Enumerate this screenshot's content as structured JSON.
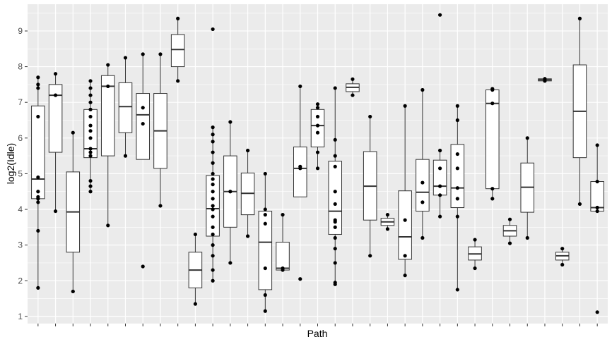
{
  "chart_data": {
    "type": "boxplot",
    "xlabel": "Path",
    "ylabel": "log2(Idle)",
    "ylim": [
      0.8,
      9.75
    ],
    "y_ticks": [
      1,
      2,
      3,
      4,
      5,
      6,
      7,
      8,
      9
    ],
    "x_tick_labels": "none",
    "grid": "on",
    "colors": {
      "panel": "#ebebeb",
      "grid": "#ffffff",
      "box_fill": "#ffffff",
      "box_line": "#333333",
      "point": "#000000"
    },
    "boxes": [
      {
        "whisker_low": 1.8,
        "q1": 4.3,
        "median": 4.85,
        "q3": 6.9,
        "whisker_high": 7.7,
        "points": [
          1.8,
          3.4,
          4.2,
          4.3,
          4.35,
          4.5,
          4.9,
          6.6,
          7.4,
          7.5,
          7.7
        ]
      },
      {
        "whisker_low": 3.95,
        "q1": 5.6,
        "median": 7.2,
        "q3": 7.5,
        "whisker_high": 7.8,
        "points": [
          3.95,
          7.2,
          7.8
        ]
      },
      {
        "whisker_low": 1.7,
        "q1": 2.8,
        "median": 3.93,
        "q3": 5.05,
        "whisker_high": 6.15,
        "points": [
          1.7,
          6.15
        ]
      },
      {
        "whisker_low": 4.5,
        "q1": 5.45,
        "median": 5.7,
        "q3": 6.8,
        "whisker_high": 7.6,
        "points": [
          4.5,
          4.65,
          4.8,
          5.5,
          5.6,
          5.7,
          6.0,
          6.2,
          6.35,
          6.6,
          6.8,
          7.0,
          7.2,
          7.4,
          7.6
        ]
      },
      {
        "whisker_low": 3.55,
        "q1": 5.5,
        "median": 7.45,
        "q3": 7.75,
        "whisker_high": 8.05,
        "points": [
          3.55,
          7.45,
          8.05
        ]
      },
      {
        "whisker_low": 5.5,
        "q1": 6.15,
        "median": 6.88,
        "q3": 7.55,
        "whisker_high": 8.25,
        "points": [
          5.5,
          8.25
        ]
      },
      {
        "whisker_low": 5.4,
        "q1": 5.4,
        "median": 6.65,
        "q3": 7.25,
        "whisker_high": 8.35,
        "points": [
          2.4,
          6.4,
          6.85,
          8.35
        ]
      },
      {
        "whisker_low": 4.1,
        "q1": 5.15,
        "median": 6.2,
        "q3": 7.25,
        "whisker_high": 8.35,
        "points": [
          4.1,
          8.35
        ]
      },
      {
        "whisker_low": 7.6,
        "q1": 8.0,
        "median": 8.48,
        "q3": 8.9,
        "whisker_high": 9.35,
        "points": [
          7.6,
          9.35
        ]
      },
      {
        "whisker_low": 1.35,
        "q1": 1.8,
        "median": 2.3,
        "q3": 2.8,
        "whisker_high": 3.3,
        "points": [
          1.35,
          3.3
        ]
      },
      {
        "whisker_low": 2.0,
        "q1": 3.25,
        "median": 4.02,
        "q3": 4.95,
        "whisker_high": 6.3,
        "points": [
          2.0,
          2.3,
          2.7,
          3.0,
          3.3,
          3.5,
          3.8,
          4.0,
          4.1,
          4.3,
          4.5,
          4.7,
          4.85,
          5.0,
          5.3,
          5.6,
          5.9,
          6.1,
          6.3,
          9.05
        ]
      },
      {
        "whisker_low": 2.5,
        "q1": 3.5,
        "median": 4.5,
        "q3": 5.5,
        "whisker_high": 6.45,
        "points": [
          2.5,
          4.5,
          6.45
        ]
      },
      {
        "whisker_low": 3.25,
        "q1": 3.85,
        "median": 4.45,
        "q3": 5.02,
        "whisker_high": 5.65,
        "points": [
          3.25,
          5.65
        ]
      },
      {
        "whisker_low": 1.15,
        "q1": 1.75,
        "median": 3.08,
        "q3": 3.95,
        "whisker_high": 5.0,
        "points": [
          1.15,
          1.6,
          2.35,
          3.6,
          3.85,
          4.0,
          5.0
        ]
      },
      {
        "whisker_low": 2.3,
        "q1": 2.3,
        "median": 2.35,
        "q3": 3.08,
        "whisker_high": 3.85,
        "points": [
          2.3,
          2.35,
          3.85
        ]
      },
      {
        "whisker_low": 4.35,
        "q1": 4.35,
        "median": 5.15,
        "q3": 5.75,
        "whisker_high": 7.45,
        "points": [
          2.05,
          5.15,
          5.2,
          7.45
        ]
      },
      {
        "whisker_low": 5.15,
        "q1": 5.75,
        "median": 6.35,
        "q3": 6.8,
        "whisker_high": 6.95,
        "points": [
          5.15,
          5.6,
          6.15,
          6.35,
          6.6,
          6.85,
          6.95
        ]
      },
      {
        "whisker_low": 1.9,
        "q1": 3.3,
        "median": 3.95,
        "q3": 5.35,
        "whisker_high": 7.4,
        "points": [
          1.9,
          1.95,
          2.5,
          2.9,
          3.2,
          3.5,
          3.65,
          3.7,
          4.15,
          4.5,
          5.2,
          5.5,
          5.95,
          7.4
        ]
      },
      {
        "whisker_low": 7.2,
        "q1": 7.3,
        "median": 7.42,
        "q3": 7.52,
        "whisker_high": 7.65,
        "points": [
          7.2,
          7.65
        ]
      },
      {
        "whisker_low": 2.7,
        "q1": 3.7,
        "median": 4.65,
        "q3": 5.62,
        "whisker_high": 6.6,
        "points": [
          2.7,
          6.6
        ]
      },
      {
        "whisker_low": 3.45,
        "q1": 3.55,
        "median": 3.65,
        "q3": 3.75,
        "whisker_high": 3.85,
        "points": [
          3.45,
          3.85
        ]
      },
      {
        "whisker_low": 2.15,
        "q1": 2.6,
        "median": 3.23,
        "q3": 4.52,
        "whisker_high": 6.9,
        "points": [
          2.15,
          2.7,
          3.7,
          6.9
        ]
      },
      {
        "whisker_low": 3.2,
        "q1": 3.95,
        "median": 4.48,
        "q3": 5.4,
        "whisker_high": 7.35,
        "points": [
          3.2,
          4.2,
          4.75,
          7.35
        ]
      },
      {
        "whisker_low": 3.8,
        "q1": 4.4,
        "median": 4.65,
        "q3": 5.38,
        "whisker_high": 5.65,
        "points": [
          3.8,
          4.4,
          4.65,
          5.15,
          5.65,
          9.45
        ]
      },
      {
        "whisker_low": 1.75,
        "q1": 4.05,
        "median": 4.6,
        "q3": 5.82,
        "whisker_high": 6.9,
        "points": [
          1.75,
          3.8,
          4.3,
          4.6,
          5.15,
          5.55,
          6.5,
          6.9
        ]
      },
      {
        "whisker_low": 2.35,
        "q1": 2.58,
        "median": 2.75,
        "q3": 2.95,
        "whisker_high": 3.15,
        "points": [
          2.35,
          3.15
        ]
      },
      {
        "whisker_low": 4.3,
        "q1": 4.58,
        "median": 6.97,
        "q3": 7.35,
        "whisker_high": 7.38,
        "points": [
          4.3,
          4.58,
          6.97,
          7.35,
          7.38
        ]
      },
      {
        "whisker_low": 3.05,
        "q1": 3.25,
        "median": 3.4,
        "q3": 3.55,
        "whisker_high": 3.72,
        "points": [
          3.05,
          3.72
        ]
      },
      {
        "whisker_low": 3.2,
        "q1": 3.92,
        "median": 4.62,
        "q3": 5.3,
        "whisker_high": 6.0,
        "points": [
          3.2,
          6.0
        ]
      },
      {
        "whisker_low": 7.6,
        "q1": 7.6,
        "median": 7.63,
        "q3": 7.66,
        "whisker_high": 7.66,
        "points": [
          7.6,
          7.66
        ]
      },
      {
        "whisker_low": 2.45,
        "q1": 2.58,
        "median": 2.7,
        "q3": 2.8,
        "whisker_high": 2.9,
        "points": [
          2.45,
          2.9
        ]
      },
      {
        "whisker_low": 4.15,
        "q1": 5.45,
        "median": 6.75,
        "q3": 8.05,
        "whisker_high": 9.35,
        "points": [
          4.15,
          9.35
        ]
      },
      {
        "whisker_low": 3.95,
        "q1": 3.95,
        "median": 4.05,
        "q3": 4.78,
        "whisker_high": 5.8,
        "points": [
          1.12,
          3.95,
          4.05,
          4.78,
          5.8
        ]
      }
    ]
  }
}
